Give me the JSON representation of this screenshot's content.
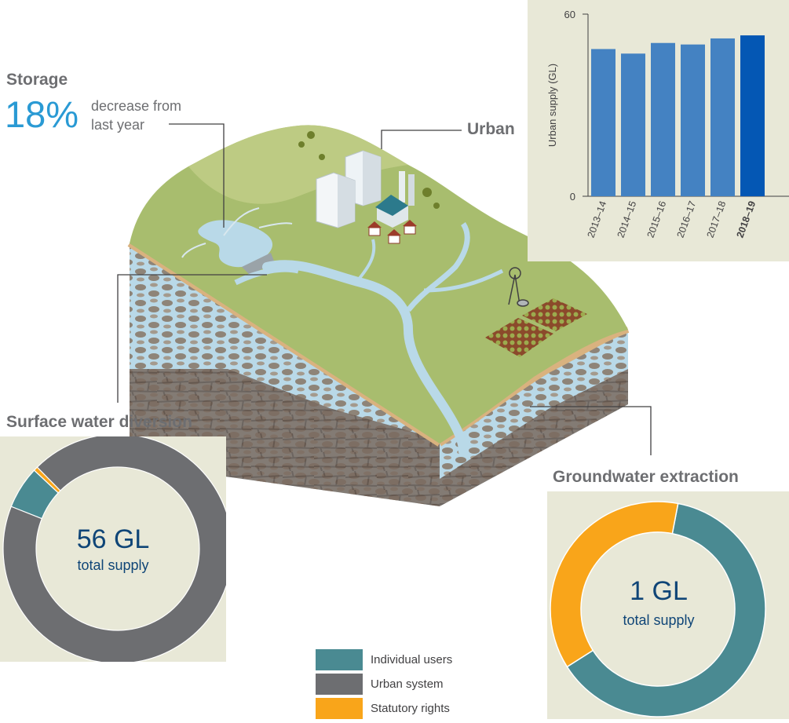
{
  "storage": {
    "title": "Storage",
    "value": "18%",
    "desc_line1": "decrease from",
    "desc_line2": "last year"
  },
  "urban": {
    "title": "Urban"
  },
  "surface": {
    "title": "Surface water diversion",
    "big": "56 GL",
    "small": "total supply"
  },
  "groundwater": {
    "title": "Groundwater extraction",
    "big": "1 GL",
    "small": "total supply"
  },
  "legend": [
    {
      "label": "Individual users",
      "color": "#4a8a92"
    },
    {
      "label": "Urban system",
      "color": "#6d6e71"
    },
    {
      "label": "Statutory rights",
      "color": "#f9a51a"
    }
  ],
  "chart_data": [
    {
      "type": "bar",
      "categories": [
        "2013–14",
        "2014–15",
        "2015–16",
        "2016–17",
        "2017–18",
        "2018–19"
      ],
      "values": [
        48.5,
        47,
        50.5,
        50,
        52,
        53
      ],
      "ylabel": "Urban supply (GL)",
      "yticks": [
        "0",
        "60"
      ],
      "ylim": [
        0,
        60
      ],
      "bar_color": "#4482c2",
      "highlight_color": "#0457b4",
      "highlight_index": 5
    },
    {
      "type": "pie",
      "title": "Surface water diversion",
      "categories": [
        "Individual users",
        "Urban system",
        "Statutory rights"
      ],
      "values": [
        6,
        93.4,
        0.6
      ],
      "colors": [
        "#4a8a92",
        "#6d6e71",
        "#f9a51a"
      ]
    },
    {
      "type": "pie",
      "title": "Groundwater extraction",
      "categories": [
        "Individual users",
        "Urban system",
        "Statutory rights"
      ],
      "values": [
        63,
        0,
        37
      ],
      "colors": [
        "#4a8a92",
        "#6d6e71",
        "#f9a51a"
      ]
    }
  ]
}
